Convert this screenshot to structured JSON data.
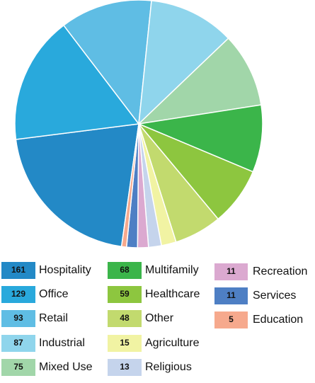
{
  "chart_data": {
    "type": "pie",
    "categories": [
      "Hospitality",
      "Office",
      "Retail",
      "Industrial",
      "Mixed Use",
      "Multifamily",
      "Healthcare",
      "Other",
      "Agriculture",
      "Religious",
      "Recreation",
      "Services",
      "Education"
    ],
    "values": [
      161,
      129,
      93,
      87,
      75,
      68,
      59,
      48,
      15,
      13,
      11,
      11,
      5
    ],
    "colors": [
      "#2389c6",
      "#29a9dc",
      "#5fbde4",
      "#8fd5ec",
      "#a1d6a9",
      "#3bb54a",
      "#8dc63f",
      "#c2da6e",
      "#f1f3a3",
      "#c5d4ec",
      "#dba9d0",
      "#4e7fc4",
      "#f6a98d"
    ],
    "legend": "bottom"
  }
}
